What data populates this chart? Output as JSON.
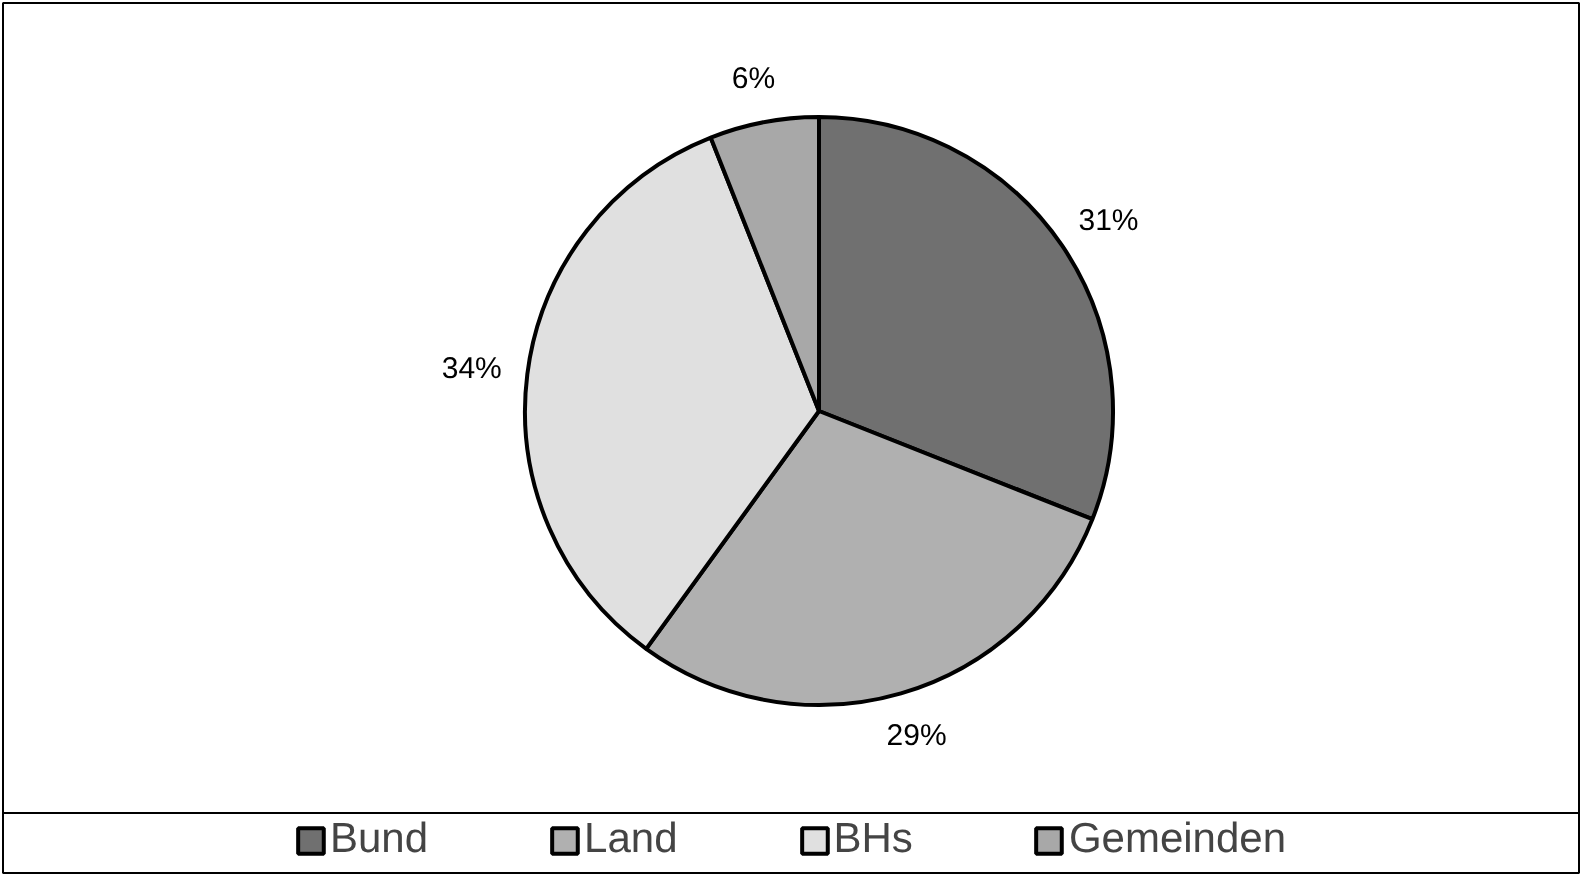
{
  "chart_data": {
    "type": "pie",
    "categories": [
      "Bund",
      "Land",
      "BHs",
      "Gemeinden"
    ],
    "values": [
      31,
      29,
      34,
      6
    ],
    "colors": [
      "#707070",
      "#b0b0b0",
      "#e0e0e0",
      "#a8a8a8"
    ],
    "value_labels": [
      "31%",
      "29%",
      "34%",
      "6%"
    ],
    "legend": "bottom"
  }
}
